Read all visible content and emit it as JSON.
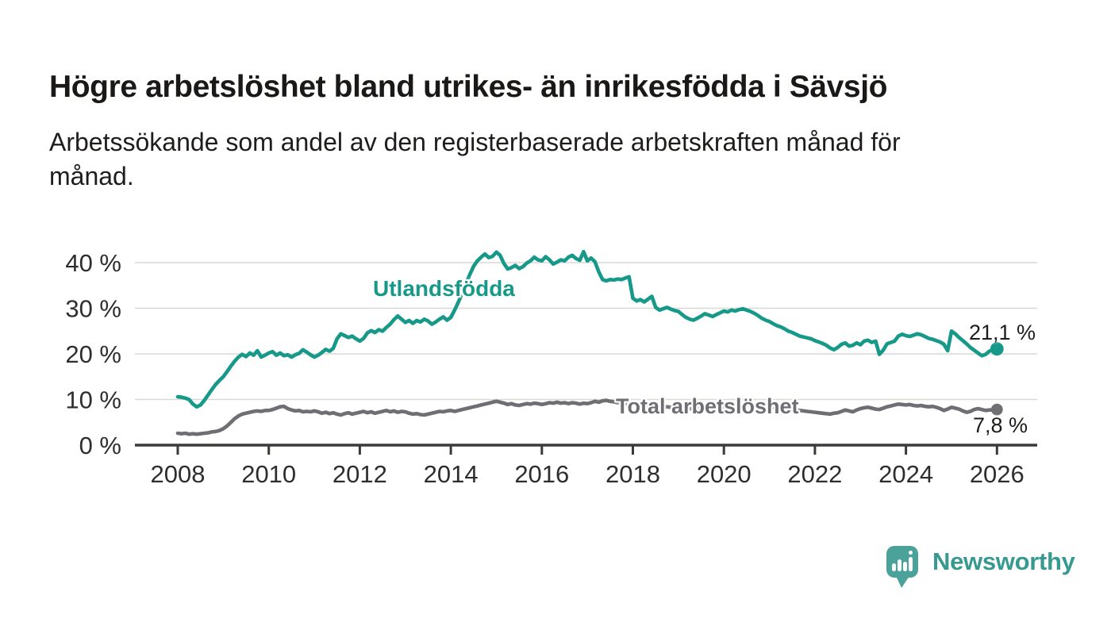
{
  "header": {
    "title": "Högre arbetslöshet bland utrikes- än inrikesfödda i Sävsjö",
    "subtitle_line1": "Arbetssökande som andel av den registerbaserade arbetskraften månad för",
    "subtitle_line2": "månad."
  },
  "colors": {
    "accent_teal": "#17998a",
    "series_gray": "#6e6e73",
    "grid": "#d8d8d6",
    "axis": "#3a3a38",
    "tick_text": "#2e2e2e",
    "title_text": "#1b1917",
    "value_label": "#1d1d1b",
    "logo_bubble": "#4aa29b",
    "logo_text": "#37998f"
  },
  "chart_data": {
    "type": "line",
    "x_unit": "monthly",
    "x_start": "2008-01",
    "x_end": "2026-01",
    "x_ticks": [
      "2008",
      "2010",
      "2012",
      "2014",
      "2016",
      "2018",
      "2020",
      "2022",
      "2024",
      "2026"
    ],
    "y_ticks": [
      {
        "value": 0,
        "label": "0 %"
      },
      {
        "value": 10,
        "label": "10 %"
      },
      {
        "value": 20,
        "label": "20 %"
      },
      {
        "value": 30,
        "label": "30 %"
      },
      {
        "value": 40,
        "label": "40 %"
      }
    ],
    "ylim": [
      0,
      44
    ],
    "grid": "horizontal",
    "legend": "inline-series-labels",
    "series": [
      {
        "name": "Utlandsfödda",
        "color": "#17998a",
        "end_label": "21,1 %",
        "end_value": 21.1,
        "values": [
          10.6,
          10.5,
          10.3,
          10.0,
          9.0,
          8.4,
          8.8,
          9.8,
          11.0,
          12.2,
          13.3,
          14.2,
          15.0,
          16.1,
          17.3,
          18.4,
          19.3,
          19.9,
          19.4,
          20.2,
          19.7,
          20.7,
          19.3,
          19.7,
          20.2,
          20.5,
          19.7,
          20.2,
          19.6,
          19.8,
          19.3,
          19.8,
          20.1,
          20.9,
          20.4,
          19.8,
          19.3,
          19.7,
          20.3,
          21.0,
          20.6,
          21.2,
          23.3,
          24.4,
          24.0,
          23.6,
          23.9,
          23.3,
          22.8,
          23.4,
          24.6,
          25.1,
          24.7,
          25.3,
          25.0,
          25.8,
          26.5,
          27.5,
          28.3,
          27.6,
          26.9,
          27.3,
          26.7,
          27.3,
          27.0,
          27.6,
          27.2,
          26.5,
          27.0,
          27.6,
          28.1,
          27.4,
          28.0,
          29.6,
          31.4,
          33.3,
          35.4,
          37.4,
          39.2,
          40.4,
          41.2,
          41.9,
          41.1,
          41.4,
          42.3,
          41.6,
          39.8,
          38.6,
          38.9,
          39.4,
          38.7,
          39.1,
          39.9,
          40.4,
          41.2,
          40.6,
          40.4,
          41.3,
          40.6,
          39.7,
          40.1,
          40.6,
          40.4,
          41.2,
          41.6,
          40.9,
          40.5,
          42.4,
          40.4,
          41.0,
          40.2,
          38.0,
          36.3,
          36.0,
          36.3,
          36.2,
          36.4,
          36.3,
          36.6,
          36.9,
          32.2,
          31.6,
          31.9,
          31.4,
          32.0,
          32.6,
          30.2,
          29.6,
          29.9,
          30.2,
          29.8,
          29.5,
          29.3,
          28.6,
          28.0,
          27.6,
          27.4,
          27.8,
          28.3,
          28.8,
          28.5,
          28.2,
          28.6,
          29.0,
          29.4,
          29.2,
          29.6,
          29.4,
          29.7,
          29.9,
          29.6,
          29.3,
          28.9,
          28.4,
          27.8,
          27.4,
          27.1,
          26.6,
          26.2,
          25.9,
          25.5,
          25.0,
          24.7,
          24.3,
          23.9,
          23.7,
          23.5,
          23.3,
          22.9,
          22.6,
          22.3,
          21.9,
          21.3,
          20.9,
          21.4,
          22.1,
          22.4,
          21.7,
          21.9,
          22.4,
          22.0,
          22.8,
          23.0,
          22.5,
          22.8,
          19.9,
          20.8,
          22.2,
          22.5,
          22.8,
          23.9,
          24.3,
          24.0,
          23.8,
          24.1,
          24.4,
          24.2,
          23.8,
          23.4,
          23.2,
          22.9,
          22.6,
          22.1,
          20.7,
          25.0,
          24.4,
          23.6,
          22.9,
          22.2,
          21.4,
          20.8,
          20.2,
          19.6,
          19.9,
          20.6,
          20.9,
          21.1
        ]
      },
      {
        "name": "Total arbetslöshet",
        "color": "#6e6e73",
        "end_label": "7,8 %",
        "end_value": 7.8,
        "values": [
          2.6,
          2.5,
          2.6,
          2.4,
          2.5,
          2.4,
          2.5,
          2.6,
          2.7,
          2.9,
          3.0,
          3.2,
          3.6,
          4.2,
          5.0,
          5.8,
          6.4,
          6.8,
          7.0,
          7.2,
          7.4,
          7.5,
          7.4,
          7.6,
          7.6,
          7.8,
          8.1,
          8.4,
          8.5,
          8.0,
          7.7,
          7.5,
          7.6,
          7.3,
          7.4,
          7.3,
          7.5,
          7.3,
          7.0,
          7.2,
          6.9,
          7.1,
          6.8,
          6.6,
          6.9,
          7.1,
          6.8,
          7.0,
          7.2,
          7.4,
          7.1,
          7.3,
          7.0,
          7.2,
          7.4,
          7.6,
          7.3,
          7.5,
          7.2,
          7.4,
          7.3,
          7.0,
          6.8,
          6.9,
          6.7,
          6.6,
          6.8,
          7.0,
          7.2,
          7.4,
          7.3,
          7.5,
          7.6,
          7.4,
          7.6,
          7.8,
          8.0,
          8.2,
          8.4,
          8.6,
          8.8,
          9.0,
          9.2,
          9.4,
          9.6,
          9.4,
          9.2,
          8.9,
          9.1,
          8.8,
          8.7,
          8.9,
          9.1,
          9.0,
          9.2,
          9.1,
          8.9,
          9.1,
          9.3,
          9.2,
          9.4,
          9.2,
          9.3,
          9.1,
          9.3,
          9.2,
          9.0,
          9.2,
          9.1,
          9.3,
          9.6,
          9.4,
          9.7,
          9.8,
          9.6,
          9.5,
          9.3,
          9.2,
          9.1,
          9.0,
          9.0,
          8.9,
          8.8,
          8.8,
          8.7,
          8.6,
          8.6,
          8.5,
          8.4,
          8.4,
          8.3,
          8.2,
          8.2,
          8.1,
          8.1,
          8.0,
          8.0,
          8.0,
          8.0,
          8.1,
          8.1,
          8.2,
          8.2,
          8.3,
          8.4,
          8.5,
          8.6,
          8.7,
          8.8,
          8.8,
          8.8,
          8.7,
          8.7,
          8.6,
          8.5,
          8.5,
          8.4,
          8.3,
          8.2,
          8.1,
          8.0,
          7.9,
          7.8,
          7.7,
          7.6,
          7.5,
          7.4,
          7.3,
          7.2,
          7.1,
          7.0,
          6.9,
          6.8,
          7.0,
          7.1,
          7.4,
          7.7,
          7.5,
          7.3,
          7.7,
          8.0,
          8.2,
          8.3,
          8.1,
          7.9,
          7.8,
          8.1,
          8.4,
          8.6,
          8.8,
          9.0,
          8.9,
          8.8,
          8.9,
          8.7,
          8.6,
          8.7,
          8.5,
          8.4,
          8.5,
          8.3,
          8.0,
          7.6,
          7.9,
          8.3,
          8.1,
          7.9,
          7.5,
          7.2,
          7.4,
          7.8,
          8.0,
          7.8,
          7.6,
          7.7,
          7.7,
          7.8
        ]
      }
    ]
  },
  "branding": {
    "logo_text": "Newsworthy"
  }
}
